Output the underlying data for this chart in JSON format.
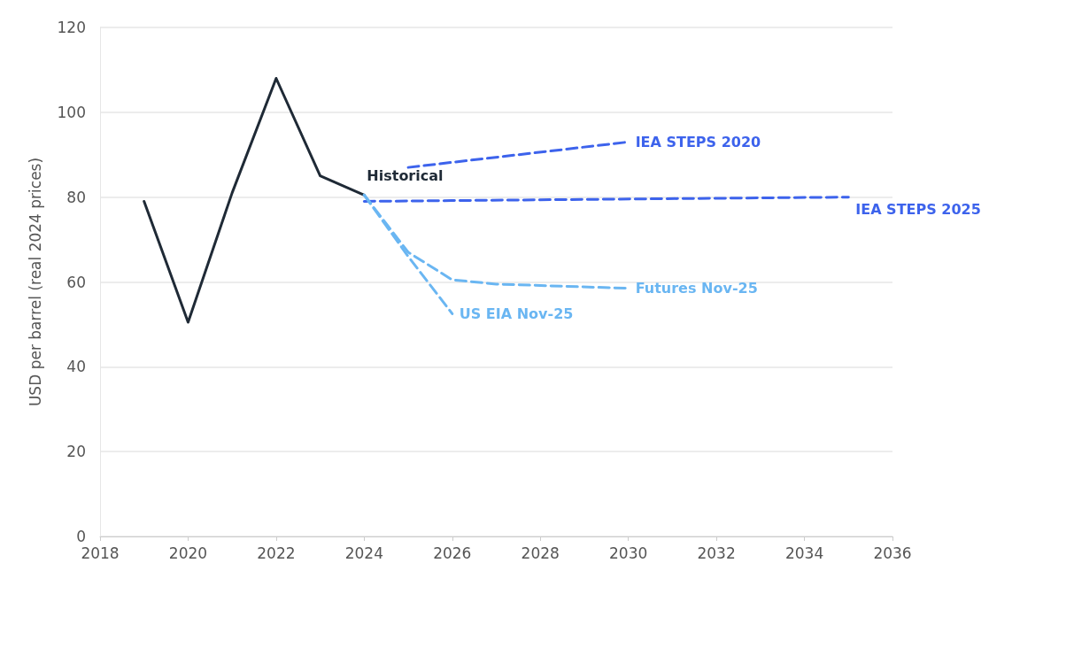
{
  "chart_data": {
    "type": "line",
    "ylabel": "USD per barrel (real 2024 prices)",
    "xlim": [
      2018,
      2036
    ],
    "xticks": [
      2018,
      2020,
      2022,
      2024,
      2026,
      2028,
      2030,
      2032,
      2034,
      2036
    ],
    "ylim": [
      0,
      120
    ],
    "yticks": [
      0,
      20,
      40,
      60,
      80,
      100,
      120
    ],
    "grid": "y",
    "legend": false,
    "marker": "none",
    "series": [
      {
        "name": "Historical",
        "color": "#1f2a36",
        "line_style": "solid",
        "x": [
          2019,
          2020,
          2021,
          2022,
          2023,
          2024
        ],
        "values": [
          79,
          50.5,
          81,
          108,
          85,
          80.5
        ]
      },
      {
        "name": "IEA STEPS 2020",
        "color": "#3d63ec",
        "line_style": "dashed",
        "x": [
          2025,
          2030
        ],
        "values": [
          87,
          93
        ]
      },
      {
        "name": "IEA STEPS 2025",
        "color": "#3d63ec",
        "line_style": "dashed",
        "x": [
          2024,
          2035
        ],
        "values": [
          79,
          80
        ]
      },
      {
        "name": "Futures Nov-25",
        "color": "#6ab6f2",
        "line_style": "dashed",
        "x": [
          2024,
          2025,
          2026,
          2027,
          2030
        ],
        "values": [
          80.5,
          67,
          60.5,
          59.5,
          58.5
        ]
      },
      {
        "name": "US EIA Nov-25",
        "color": "#6ab6f2",
        "line_style": "dashed",
        "x": [
          2024,
          2025,
          2026
        ],
        "values": [
          80.5,
          66,
          52.5
        ]
      }
    ]
  }
}
